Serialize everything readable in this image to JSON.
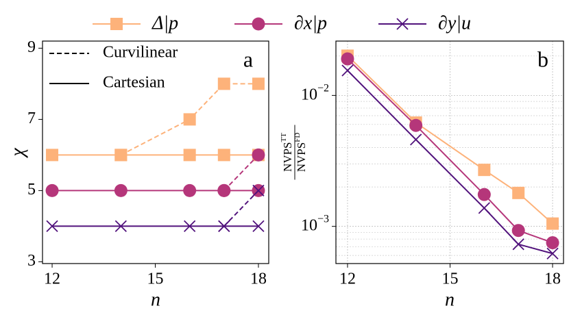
{
  "chart_data": [
    {
      "type": "line",
      "x": [
        12,
        14,
        16,
        17,
        18
      ],
      "xlim": [
        11.72,
        18.3
      ],
      "xticks": [
        12,
        15,
        18
      ],
      "ylim": [
        2.95,
        9.2
      ],
      "yticks": [
        3,
        5,
        7,
        9
      ],
      "xlabel": "n",
      "ylabel": "χ",
      "annotation": "a",
      "style_legend": [
        "Curvilinear",
        "Cartesian"
      ],
      "log_y": false,
      "grid": false,
      "series": [
        {
          "name": "Δ|p",
          "color": "#fdb27a",
          "marker": "square",
          "values": [
            6,
            6,
            6,
            6,
            6
          ],
          "curvilinear_values": [
            null,
            6,
            7,
            8,
            8
          ]
        },
        {
          "name": "∂x|p",
          "color": "#b5367a",
          "marker": "circle",
          "values": [
            5,
            5,
            5,
            5,
            5
          ],
          "curvilinear_values": [
            null,
            null,
            null,
            5,
            6
          ]
        },
        {
          "name": "∂y|u",
          "color": "#51127c",
          "marker": "x",
          "values": [
            4,
            4,
            4,
            4,
            4
          ],
          "curvilinear_values": [
            null,
            null,
            null,
            4,
            5
          ]
        }
      ]
    },
    {
      "type": "line",
      "x": [
        12,
        14,
        16,
        17,
        18
      ],
      "xlim": [
        11.66,
        18.32
      ],
      "xticks": [
        12,
        15,
        18
      ],
      "ylim": [
        0.00052,
        0.026
      ],
      "log_y": true,
      "grid": true,
      "yticks": [
        {
          "value": 0.01,
          "label": "10",
          "exponent": "−2"
        },
        {
          "value": 0.001,
          "label": "10",
          "exponent": "−3"
        }
      ],
      "xlabel": "n",
      "annotation": "b",
      "ylabel": {
        "numerator": "NVPS",
        "numerator_sup": "TT",
        "denominator": "NVPS",
        "denominator_sup": "FD"
      },
      "series": [
        {
          "color": "#fdb27a",
          "marker": "square",
          "values": [
            0.0201,
            0.0062,
            0.0027,
            0.0018,
            0.00105
          ]
        },
        {
          "color": "#b5367a",
          "marker": "circle",
          "values": [
            0.019,
            0.0059,
            0.00175,
            0.00093,
            0.00075
          ]
        },
        {
          "color": "#51127c",
          "marker": "x",
          "values": [
            0.0155,
            0.0046,
            0.00138,
            0.00073,
            0.00062
          ]
        }
      ]
    }
  ]
}
